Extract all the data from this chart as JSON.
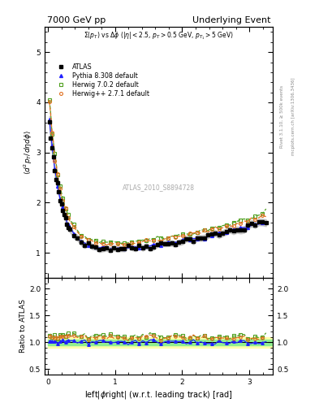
{
  "title_left": "7000 GeV pp",
  "title_right": "Underlying Event",
  "annotation": "ATLAS_2010_S8894728",
  "subtitle": "$\\Sigma(p_T)$ vs $\\Delta\\phi$ ($|\\eta| < 2.5$, $p_T > 0.5$ GeV, $p_{T_1} > 5$ GeV)",
  "ylabel_main": "$\\langle d^2 p_T / d\\eta d\\phi \\rangle$",
  "ylabel_ratio": "Ratio to ATLAS",
  "xlabel": "left$|\\phi$right$|$ (w.r.t. leading track) [rad]",
  "right_label1": "Rivet 3.1.10, ≥ 500k events",
  "right_label2": "mcplots.cern.ch [arXiv:1306.3436]",
  "ylim_main": [
    0.5,
    5.5
  ],
  "ylim_ratio": [
    0.4,
    2.2
  ],
  "yticks_main": [
    1,
    2,
    3,
    4,
    5
  ],
  "yticks_ratio": [
    0.5,
    1.0,
    1.5,
    2.0
  ],
  "xlim": [
    -0.05,
    3.35
  ],
  "xticks": [
    0,
    1,
    2,
    3
  ],
  "atlas_color": "#000000",
  "herwig271_color": "#E07020",
  "herwig702_color": "#50A020",
  "pythia_color": "#2020FF",
  "band_color_inner": "#90EE90",
  "band_color_outer": "#FFFFAA",
  "legend_entries": [
    "ATLAS",
    "Herwig++ 2.7.1 default",
    "Herwig 7.0.2 default",
    "Pythia 8.308 default"
  ]
}
